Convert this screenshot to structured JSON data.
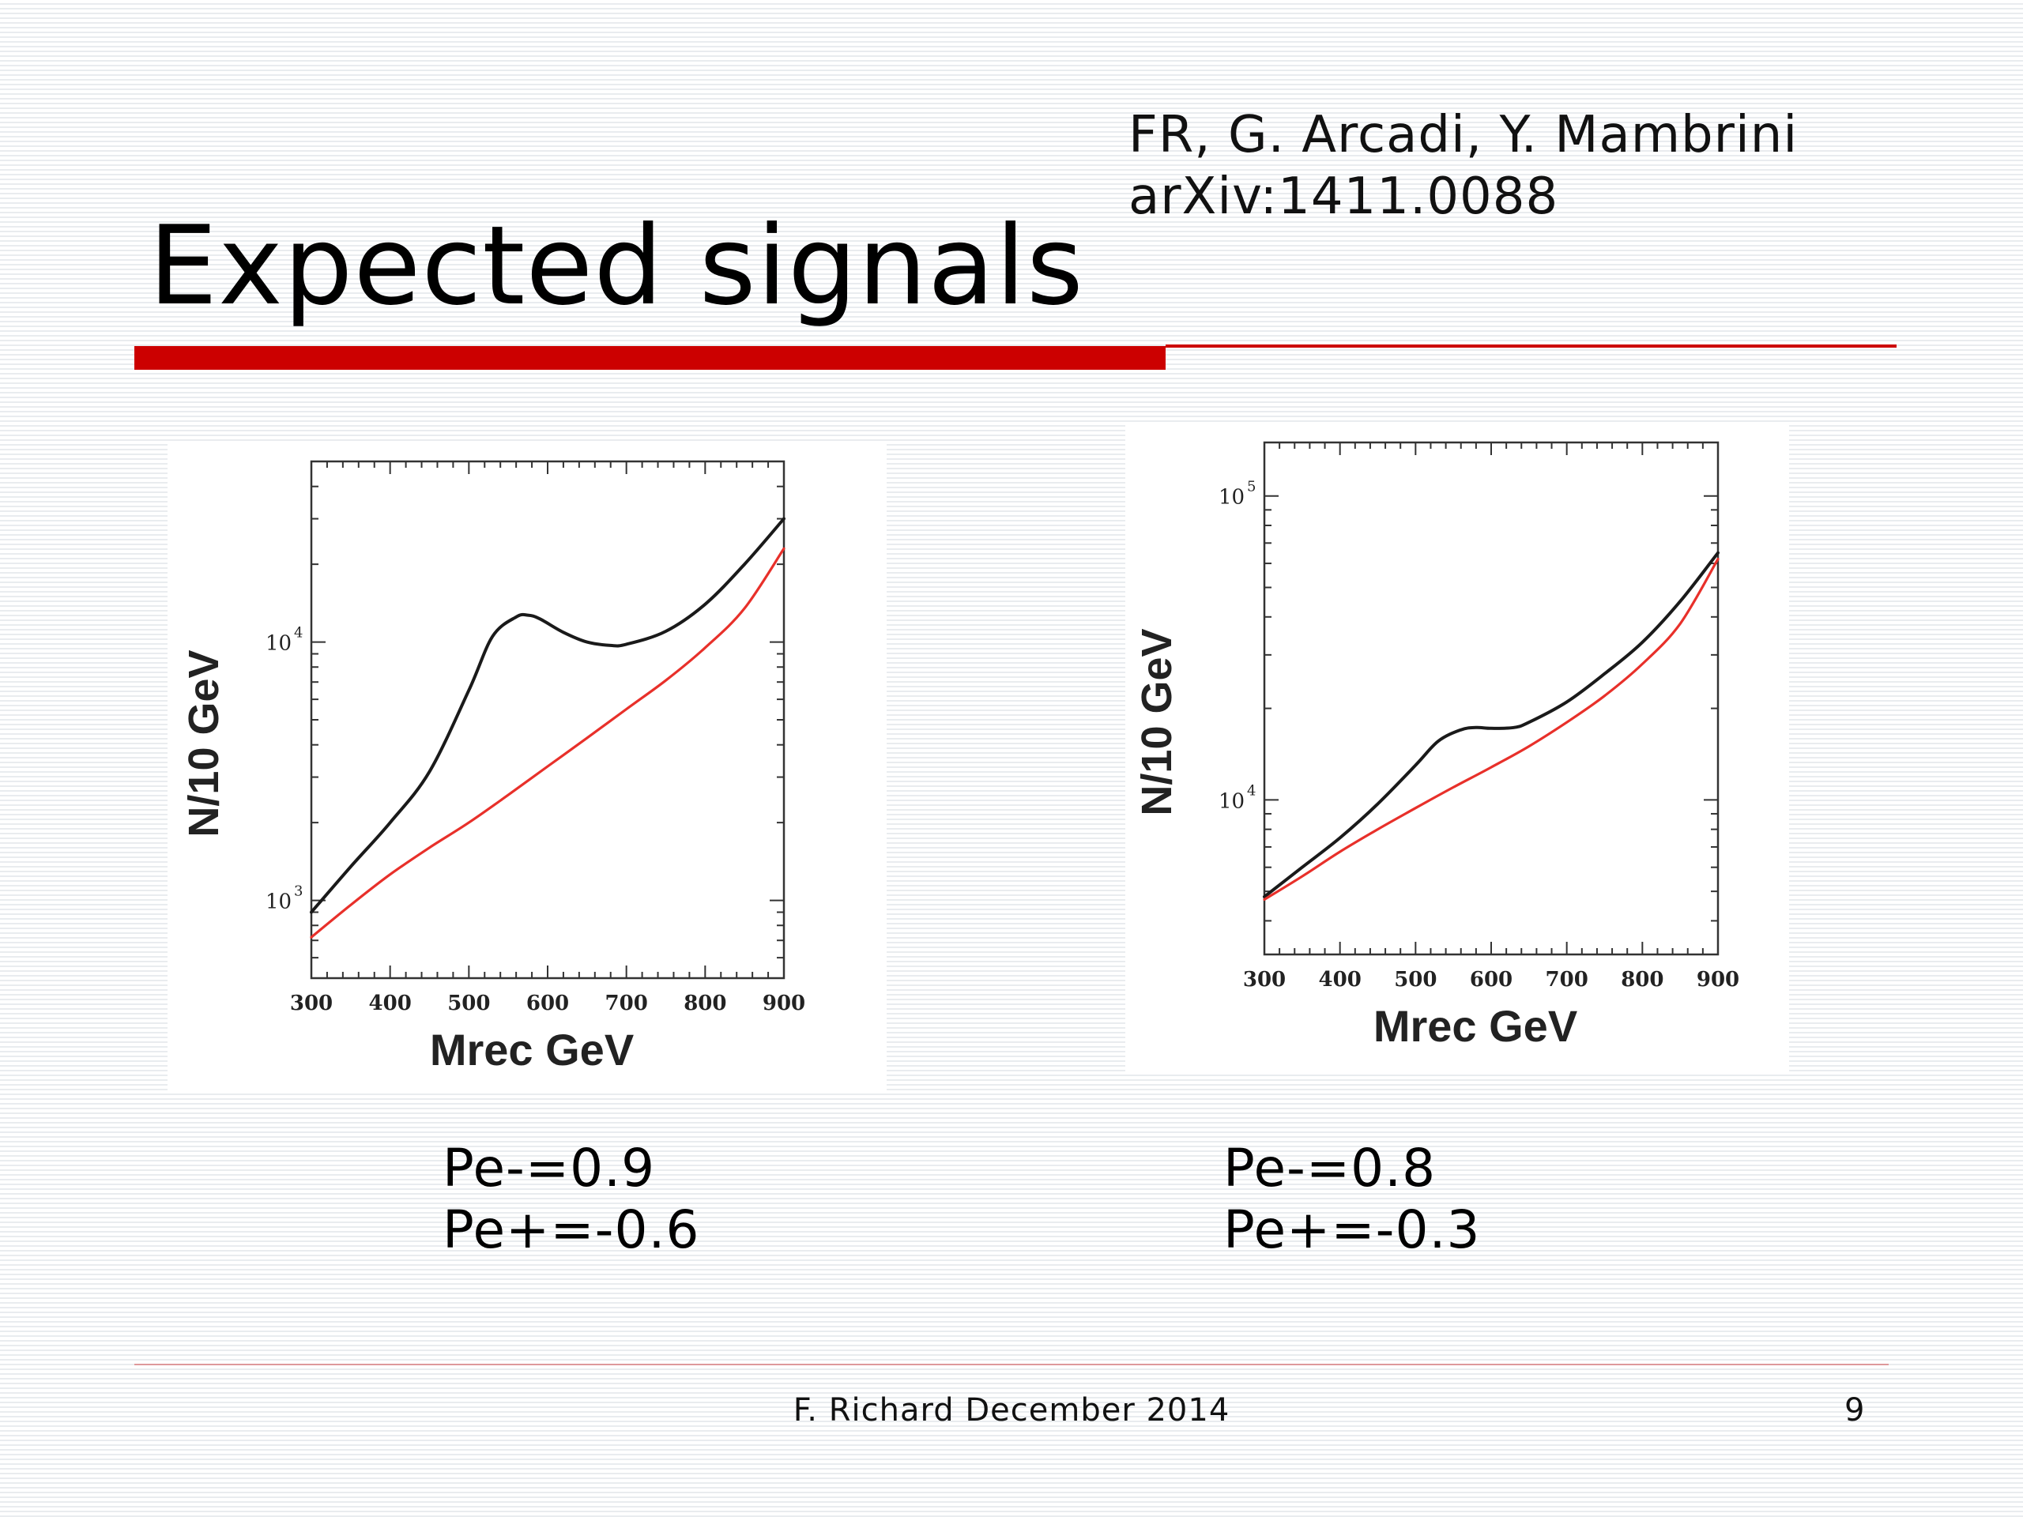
{
  "slide": {
    "title": "Expected signals",
    "authors_line1": "FR, G. Arcadi, Y. Mambrini",
    "authors_line2": "arXiv:1411.0088",
    "footer": "F. Richard December 2014",
    "page_number": "9",
    "accent_color": "#cc0000",
    "left_polarization": {
      "pe_minus": "Pe-=0.9",
      "pe_plus": "Pe+=-0.6"
    },
    "right_polarization": {
      "pe_minus": "Pe-=0.8",
      "pe_plus": "Pe+=-0.3"
    }
  },
  "chart_data": [
    {
      "type": "line",
      "xlabel": "Mrec  GeV",
      "ylabel": "N/10 GeV",
      "xlim": [
        300,
        900
      ],
      "ylim": [
        500,
        50000
      ],
      "yscale": "log",
      "x_ticks": [
        300,
        400,
        500,
        600,
        700,
        800,
        900
      ],
      "y_ticks": [
        {
          "value": 1000,
          "label_base": "10",
          "label_exp": "3"
        },
        {
          "value": 10000,
          "label_base": "10",
          "label_exp": "4"
        }
      ],
      "grid": false,
      "series": [
        {
          "color": "#1a1a1a",
          "x": [
            300,
            350,
            400,
            450,
            500,
            530,
            560,
            575,
            590,
            620,
            650,
            680,
            700,
            750,
            800,
            850,
            900
          ],
          "y": [
            900,
            1350,
            2000,
            3150,
            6500,
            10500,
            12500,
            12700,
            12300,
            10900,
            10000,
            9700,
            9800,
            11000,
            14000,
            20000,
            30000
          ]
        },
        {
          "color": "#e8302a",
          "x": [
            300,
            350,
            400,
            450,
            500,
            550,
            600,
            650,
            700,
            750,
            800,
            850,
            900
          ],
          "y": [
            720,
            960,
            1260,
            1600,
            2000,
            2560,
            3300,
            4250,
            5500,
            7100,
            9500,
            13500,
            23000
          ]
        }
      ]
    },
    {
      "type": "line",
      "xlabel": "Mrec GeV",
      "ylabel": "N/10 GeV",
      "xlim": [
        300,
        900
      ],
      "ylim": [
        3100,
        150000
      ],
      "yscale": "log",
      "x_ticks": [
        300,
        400,
        500,
        600,
        700,
        800,
        900
      ],
      "y_ticks": [
        {
          "value": 10000,
          "label_base": "10",
          "label_exp": "4"
        },
        {
          "value": 100000,
          "label_base": "10",
          "label_exp": "5"
        }
      ],
      "grid": false,
      "series": [
        {
          "color": "#1a1a1a",
          "x": [
            300,
            350,
            400,
            450,
            500,
            530,
            560,
            580,
            600,
            630,
            650,
            700,
            750,
            800,
            850,
            900
          ],
          "y": [
            4800,
            6000,
            7500,
            9700,
            13000,
            15600,
            17000,
            17300,
            17200,
            17300,
            18000,
            21000,
            26000,
            33000,
            45000,
            65000
          ]
        },
        {
          "color": "#e8302a",
          "x": [
            300,
            350,
            400,
            450,
            500,
            550,
            600,
            650,
            700,
            750,
            800,
            850,
            900
          ],
          "y": [
            4700,
            5600,
            6750,
            8000,
            9400,
            11000,
            12800,
            15000,
            18000,
            22000,
            28000,
            38000,
            62000
          ]
        }
      ]
    }
  ]
}
